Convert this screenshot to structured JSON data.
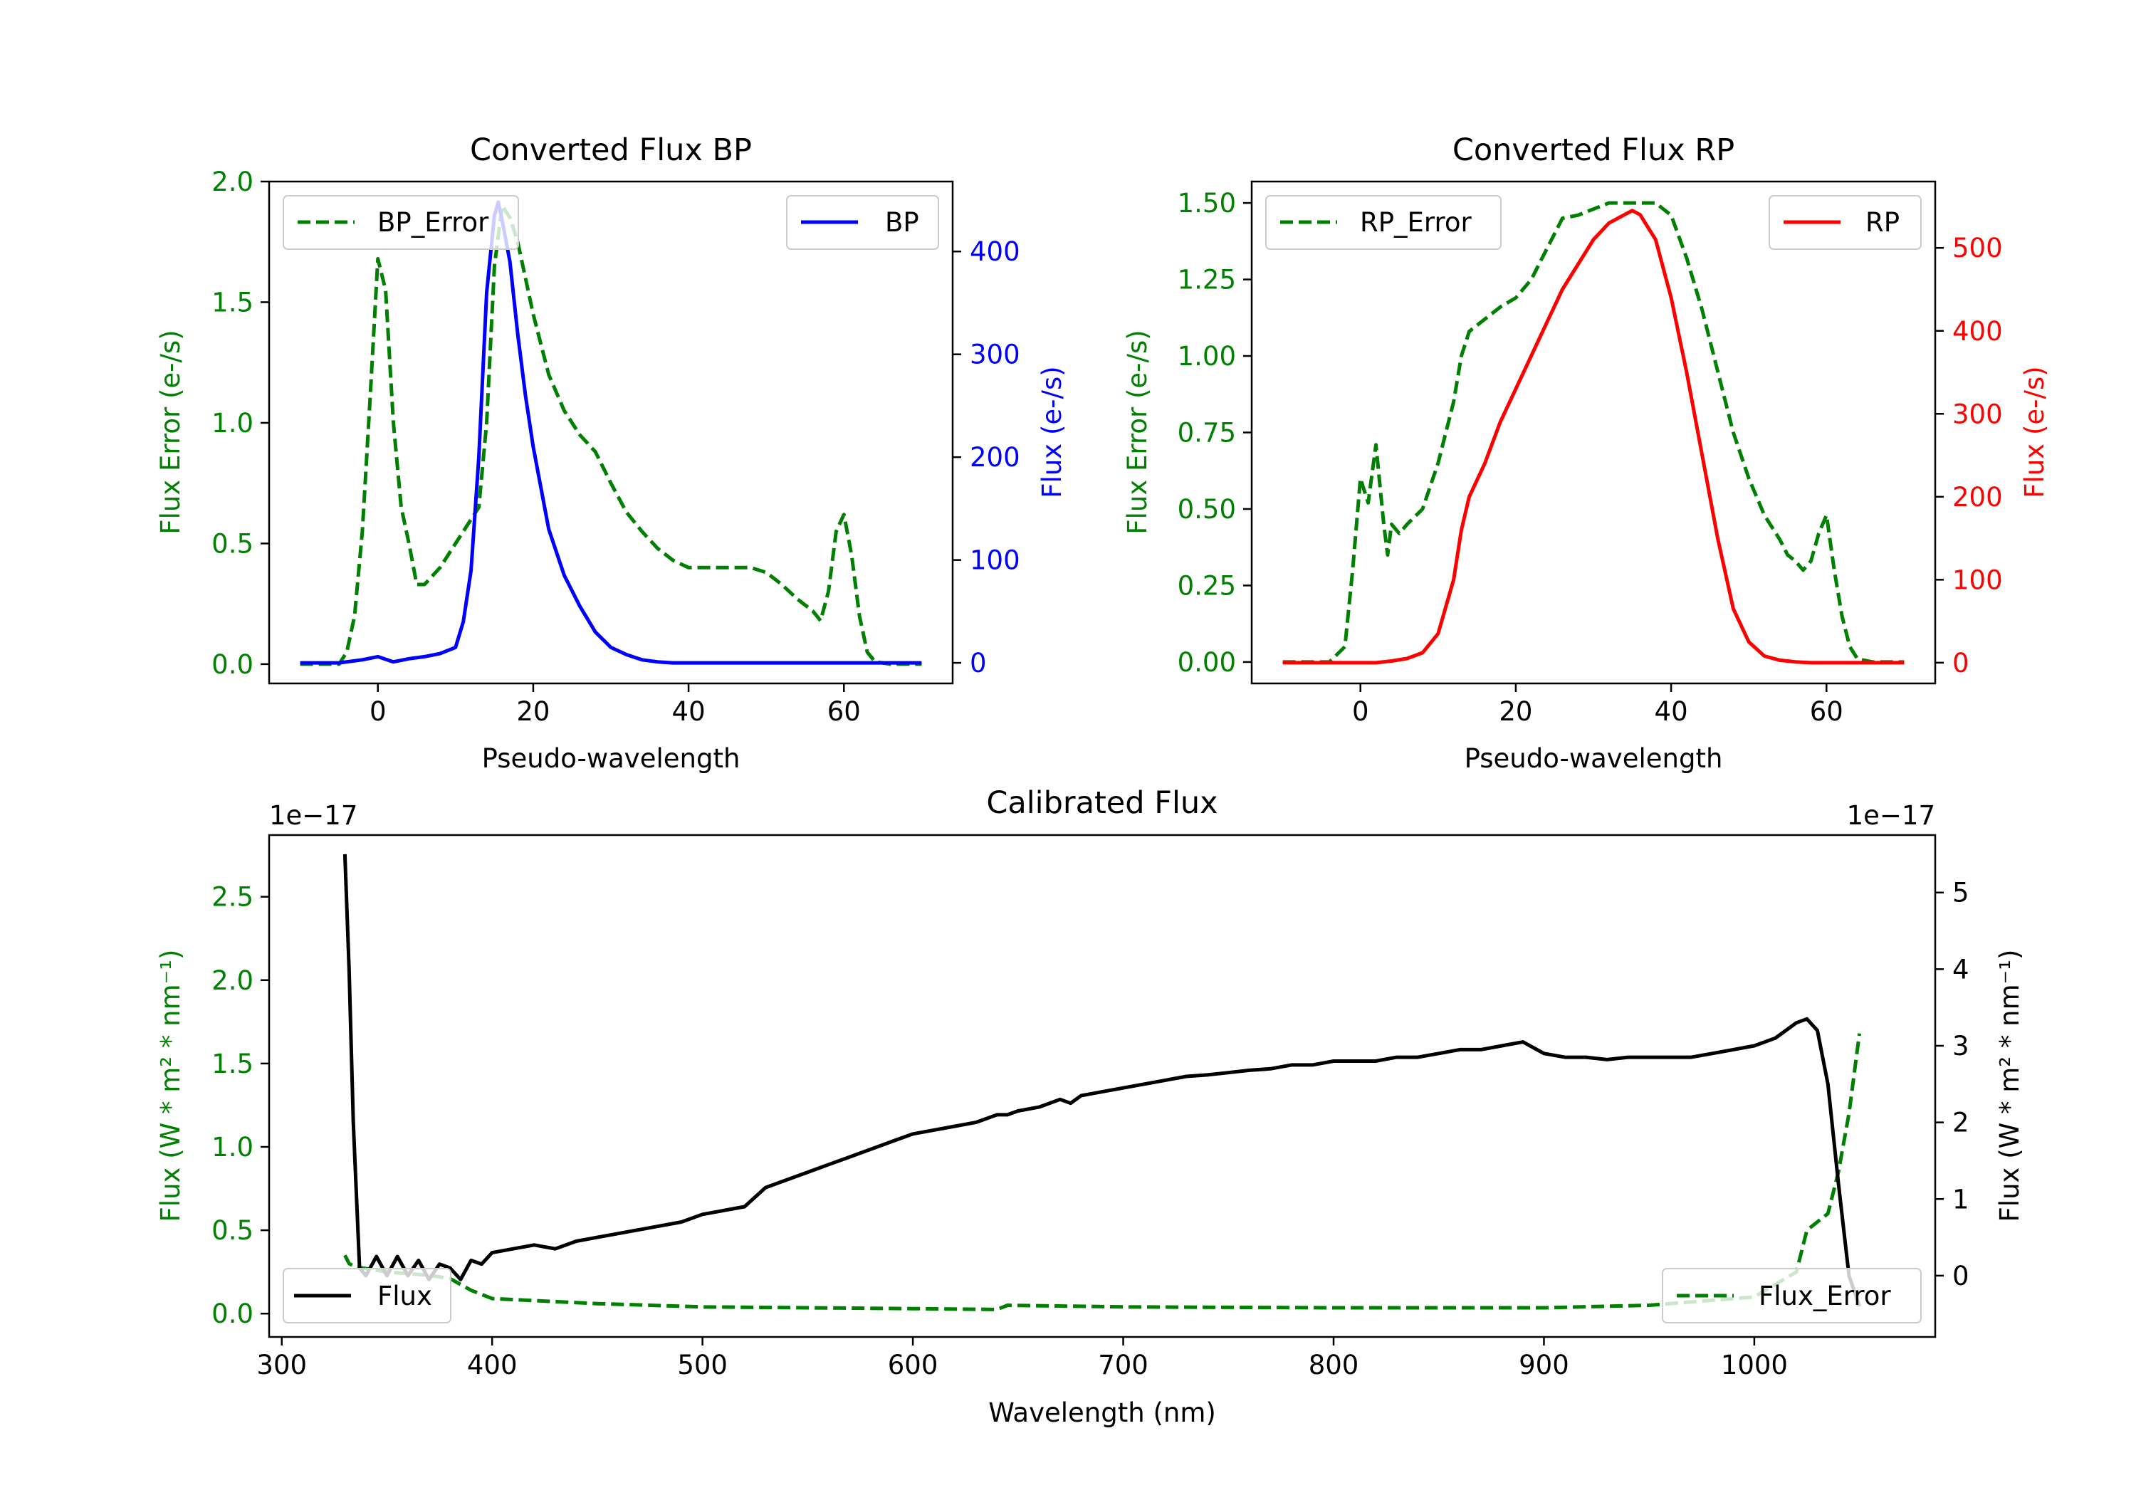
{
  "chart_data": [
    {
      "type": "line",
      "title": "Converted Flux BP",
      "xlabel": "Pseudo-wavelength",
      "xlim": [
        -14,
        74
      ],
      "xticks": [
        "0",
        "20",
        "40",
        "60"
      ],
      "left_axis": {
        "label": "Flux Error (e-/s)",
        "color": "#008000",
        "ylim": [
          -0.08,
          2.0
        ],
        "ticks": [
          "0.0",
          "0.5",
          "1.0",
          "1.5",
          "2.0"
        ]
      },
      "right_axis": {
        "label": "Flux (e-/s)",
        "color": "#0000ff",
        "ylim": [
          -20,
          468
        ],
        "ticks": [
          "0",
          "100",
          "200",
          "300",
          "400"
        ]
      },
      "series": [
        {
          "name": "BP_Error",
          "axis": "left",
          "style": "dashed",
          "color": "#008000",
          "x": [
            -10,
            -5,
            -4,
            -3,
            -2,
            -1,
            0,
            1,
            2,
            3,
            4,
            5,
            6,
            8,
            10,
            12,
            13,
            14,
            15,
            16,
            17,
            18,
            20,
            22,
            24,
            26,
            28,
            30,
            32,
            34,
            36,
            38,
            40,
            42,
            44,
            46,
            48,
            50,
            52,
            54,
            56,
            57,
            58,
            59,
            60,
            61,
            62,
            63,
            64,
            66,
            68,
            70
          ],
          "y": [
            0,
            0,
            0.05,
            0.2,
            0.55,
            1.1,
            1.68,
            1.55,
            1.0,
            0.65,
            0.5,
            0.33,
            0.33,
            0.4,
            0.5,
            0.6,
            0.65,
            1.0,
            1.65,
            1.9,
            1.85,
            1.75,
            1.45,
            1.2,
            1.05,
            0.95,
            0.88,
            0.75,
            0.63,
            0.55,
            0.48,
            0.43,
            0.4,
            0.4,
            0.4,
            0.4,
            0.4,
            0.38,
            0.33,
            0.27,
            0.22,
            0.18,
            0.3,
            0.55,
            0.62,
            0.45,
            0.2,
            0.05,
            0.01,
            0,
            0,
            0
          ]
        },
        {
          "name": "BP",
          "axis": "right",
          "style": "solid",
          "color": "#0000ff",
          "x": [
            -10,
            -5,
            -2,
            0,
            2,
            4,
            6,
            8,
            10,
            11,
            12,
            13,
            14,
            15,
            15.5,
            16,
            17,
            18,
            19,
            20,
            22,
            24,
            26,
            28,
            30,
            32,
            34,
            36,
            38,
            40,
            45,
            50,
            55,
            60,
            65,
            70
          ],
          "y": [
            0,
            0,
            3,
            6,
            1,
            4,
            6,
            9,
            15,
            40,
            90,
            200,
            360,
            435,
            448,
            430,
            390,
            320,
            260,
            210,
            130,
            85,
            55,
            30,
            15,
            8,
            3,
            1,
            0,
            0,
            0,
            0,
            0,
            0,
            0,
            0
          ]
        }
      ],
      "legend": [
        {
          "label": "BP_Error",
          "position": "upper-left"
        },
        {
          "label": "BP",
          "position": "upper-right"
        }
      ]
    },
    {
      "type": "line",
      "title": "Converted Flux RP",
      "xlabel": "Pseudo-wavelength",
      "xlim": [
        -14,
        74
      ],
      "xticks": [
        "0",
        "20",
        "40",
        "60"
      ],
      "left_axis": {
        "label": "Flux Error (e-/s)",
        "color": "#008000",
        "ylim": [
          -0.07,
          1.57
        ],
        "ticks": [
          "0.00",
          "0.25",
          "0.50",
          "0.75",
          "1.00",
          "1.25",
          "1.50"
        ]
      },
      "right_axis": {
        "label": "Flux (e-/s)",
        "color": "#ff0000",
        "ylim": [
          -25,
          580
        ],
        "ticks": [
          "0",
          "100",
          "200",
          "300",
          "400",
          "500"
        ]
      },
      "series": [
        {
          "name": "RP_Error",
          "axis": "left",
          "style": "dashed",
          "color": "#008000",
          "x": [
            -10,
            -4,
            -2,
            -1,
            0,
            1,
            2,
            3,
            3.5,
            4,
            5,
            6,
            8,
            10,
            12,
            13,
            14,
            16,
            18,
            20,
            22,
            24,
            26,
            28,
            30,
            32,
            34,
            36,
            38,
            40,
            42,
            44,
            46,
            48,
            50,
            52,
            54,
            55,
            56,
            57,
            58,
            59,
            60,
            61,
            62,
            63,
            64,
            66,
            70
          ],
          "y": [
            0,
            0,
            0.05,
            0.3,
            0.6,
            0.52,
            0.71,
            0.45,
            0.35,
            0.45,
            0.42,
            0.45,
            0.5,
            0.65,
            0.85,
            1.0,
            1.08,
            1.12,
            1.16,
            1.19,
            1.25,
            1.35,
            1.45,
            1.46,
            1.48,
            1.5,
            1.5,
            1.5,
            1.5,
            1.46,
            1.32,
            1.15,
            0.95,
            0.75,
            0.6,
            0.48,
            0.4,
            0.35,
            0.33,
            0.3,
            0.33,
            0.42,
            0.48,
            0.3,
            0.15,
            0.05,
            0.01,
            0,
            0
          ]
        },
        {
          "name": "RP",
          "axis": "right",
          "style": "solid",
          "color": "#ff0000",
          "x": [
            -10,
            0,
            2,
            4,
            6,
            8,
            10,
            12,
            13,
            14,
            16,
            18,
            20,
            22,
            24,
            26,
            28,
            30,
            32,
            34,
            35,
            36,
            38,
            40,
            42,
            44,
            46,
            48,
            50,
            52,
            54,
            56,
            58,
            60,
            62,
            64,
            66,
            70
          ],
          "y": [
            0,
            0,
            0,
            2,
            5,
            12,
            35,
            100,
            160,
            200,
            240,
            290,
            330,
            370,
            410,
            450,
            480,
            510,
            530,
            540,
            545,
            540,
            510,
            440,
            350,
            250,
            150,
            65,
            25,
            8,
            3,
            1,
            0,
            0,
            0,
            0,
            0,
            0
          ]
        }
      ],
      "legend": [
        {
          "label": "RP_Error",
          "position": "upper-left"
        },
        {
          "label": "RP",
          "position": "upper-right"
        }
      ]
    },
    {
      "type": "line",
      "title": "Calibrated Flux",
      "xlabel": "Wavelength (nm)",
      "xlim": [
        294,
        1086
      ],
      "xticks": [
        "300",
        "400",
        "500",
        "600",
        "700",
        "800",
        "900",
        "1000"
      ],
      "left_axis": {
        "label": "Flux (W * m² * nm⁻¹)",
        "color": "#008000",
        "ylim": [
          -0.14,
          2.87
        ],
        "ticks": [
          "0.0",
          "0.5",
          "1.0",
          "1.5",
          "2.0",
          "2.5"
        ],
        "offset": "1e−17"
      },
      "right_axis": {
        "label": "Flux (W * m² * nm⁻¹)",
        "color": "#000000",
        "ylim": [
          -0.8,
          5.75
        ],
        "ticks": [
          "0",
          "1",
          "2",
          "3",
          "4",
          "5"
        ],
        "offset": "1e−17"
      },
      "series": [
        {
          "name": "Flux_Error",
          "axis": "left",
          "style": "dashed",
          "color": "#008000",
          "x": [
            330,
            332,
            335,
            340,
            350,
            360,
            370,
            380,
            390,
            400,
            450,
            500,
            550,
            600,
            640,
            645,
            700,
            800,
            900,
            950,
            1000,
            1020,
            1025,
            1030,
            1035,
            1040,
            1045,
            1050
          ],
          "y": [
            0.35,
            0.3,
            0.28,
            0.27,
            0.25,
            0.24,
            0.23,
            0.21,
            0.14,
            0.09,
            0.06,
            0.04,
            0.035,
            0.03,
            0.025,
            0.05,
            0.04,
            0.035,
            0.035,
            0.05,
            0.1,
            0.25,
            0.5,
            0.55,
            0.6,
            0.85,
            1.2,
            1.68
          ]
        },
        {
          "name": "Flux",
          "axis": "right",
          "style": "solid",
          "color": "#000000",
          "x": [
            330,
            332,
            334,
            337,
            340,
            345,
            350,
            355,
            360,
            365,
            370,
            375,
            380,
            385,
            390,
            395,
            400,
            410,
            420,
            430,
            440,
            450,
            460,
            470,
            480,
            490,
            500,
            510,
            520,
            530,
            540,
            550,
            560,
            570,
            580,
            590,
            600,
            610,
            620,
            630,
            640,
            645,
            650,
            660,
            670,
            675,
            680,
            690,
            700,
            710,
            720,
            730,
            740,
            750,
            760,
            770,
            780,
            790,
            800,
            810,
            820,
            830,
            840,
            850,
            860,
            870,
            880,
            890,
            900,
            910,
            920,
            930,
            940,
            950,
            960,
            970,
            980,
            990,
            1000,
            1010,
            1020,
            1025,
            1030,
            1035,
            1040,
            1045,
            1050
          ],
          "y": [
            5.5,
            4.0,
            2.0,
            0.1,
            0.0,
            0.25,
            0.0,
            0.25,
            0.0,
            0.2,
            -0.05,
            0.15,
            0.1,
            -0.05,
            0.2,
            0.15,
            0.3,
            0.35,
            0.4,
            0.35,
            0.45,
            0.5,
            0.55,
            0.6,
            0.65,
            0.7,
            0.8,
            0.85,
            0.9,
            1.15,
            1.25,
            1.35,
            1.45,
            1.55,
            1.65,
            1.75,
            1.85,
            1.9,
            1.95,
            2.0,
            2.1,
            2.1,
            2.15,
            2.2,
            2.3,
            2.25,
            2.35,
            2.4,
            2.45,
            2.5,
            2.55,
            2.6,
            2.62,
            2.65,
            2.68,
            2.7,
            2.75,
            2.75,
            2.8,
            2.8,
            2.8,
            2.85,
            2.85,
            2.9,
            2.95,
            2.95,
            3.0,
            3.05,
            2.9,
            2.85,
            2.85,
            2.82,
            2.85,
            2.85,
            2.85,
            2.85,
            2.9,
            2.95,
            3.0,
            3.1,
            3.3,
            3.35,
            3.2,
            2.5,
            1.2,
            0.0,
            -0.4
          ]
        }
      ],
      "legend": [
        {
          "label": "Flux",
          "position": "lower-left"
        },
        {
          "label": "Flux_Error",
          "position": "lower-right"
        }
      ]
    }
  ]
}
